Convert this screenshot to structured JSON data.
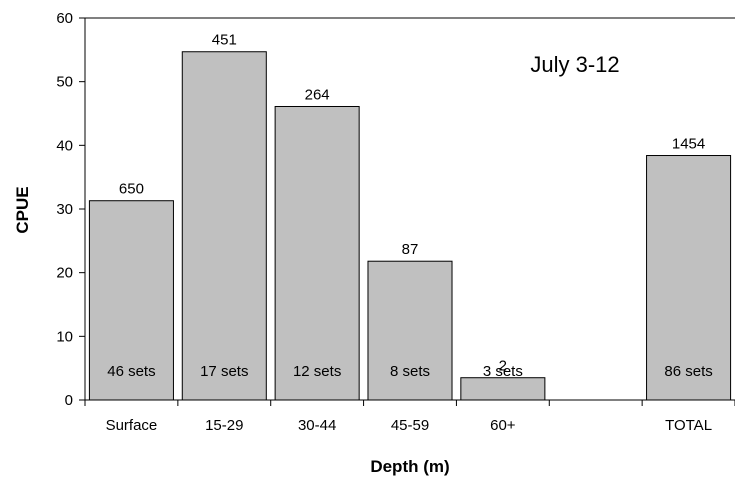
{
  "chart_data": {
    "type": "bar",
    "title": "",
    "annotation": "July 3-12",
    "xlabel": "Depth (m)",
    "ylabel": "CPUE",
    "ylim": [
      0,
      60
    ],
    "yticks": [
      "0",
      "10",
      "20",
      "30",
      "40",
      "50",
      "60"
    ],
    "categories": [
      "Surface",
      "15-29",
      "30-44",
      "45-59",
      "60+",
      "",
      "TOTAL"
    ],
    "values": [
      31.3,
      54.7,
      46.1,
      21.8,
      3.5,
      null,
      38.4
    ],
    "data_labels": [
      "650",
      "451",
      "264",
      "87",
      "2",
      "",
      "1454"
    ],
    "sets_labels": [
      "46 sets",
      "17 sets",
      "12 sets",
      "8 sets",
      "3 sets",
      "",
      "86 sets"
    ],
    "grid": false,
    "legend": "none",
    "bar_color": "#c0c0c0",
    "edge_color": "#000000"
  }
}
